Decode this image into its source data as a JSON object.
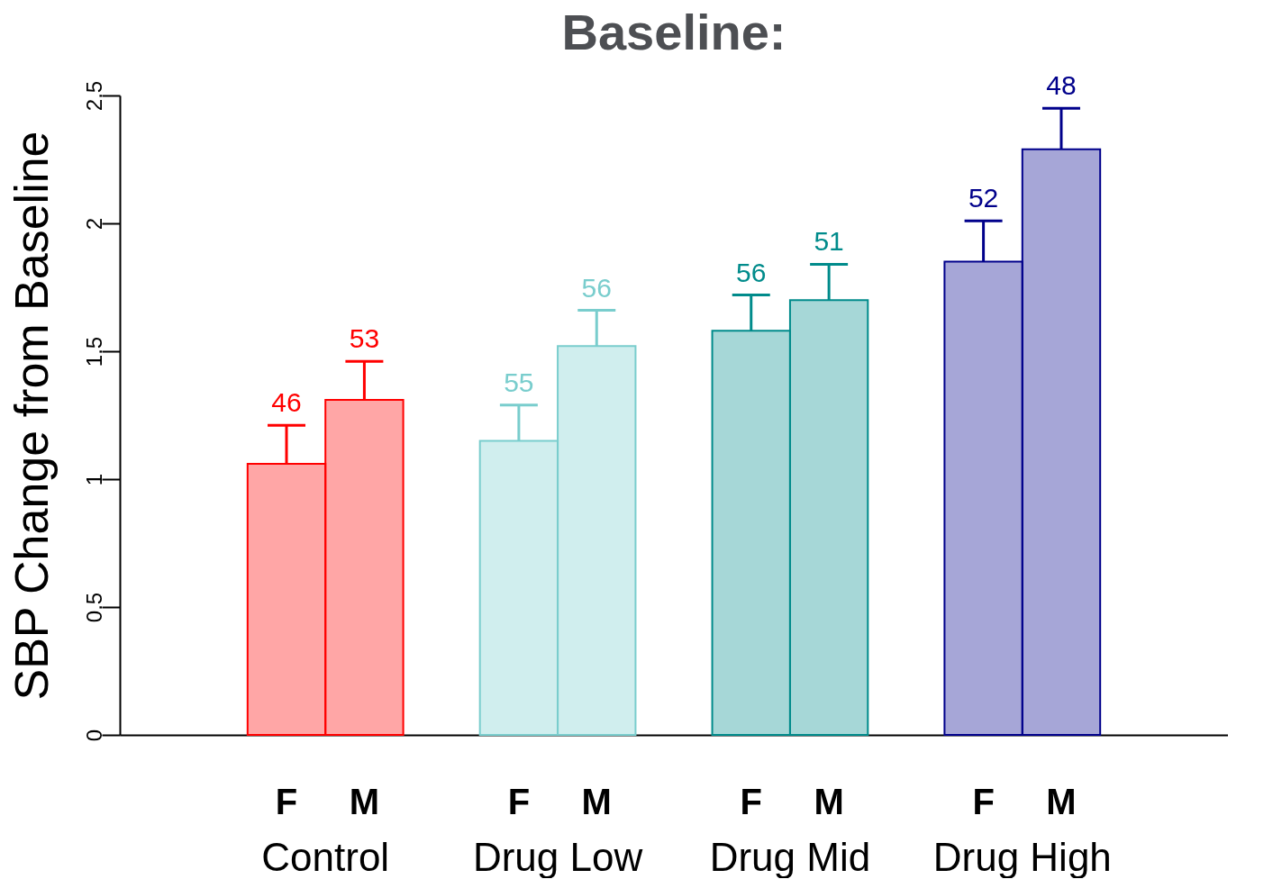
{
  "chart_data": {
    "type": "bar",
    "title": "Baseline:",
    "ylabel": "SBP Change from Baseline",
    "categories": [
      "Control",
      "Drug Low",
      "Drug Mid",
      "Drug High"
    ],
    "series": [
      {
        "name": "F",
        "colors": [
          "#ff0000",
          "#79cdcd",
          "#008b8b",
          "#00008b"
        ],
        "values": [
          1.06,
          1.15,
          1.58,
          1.85
        ],
        "errors": [
          [
            1.06,
            1.21
          ],
          [
            1.15,
            1.29
          ],
          [
            1.58,
            1.72
          ],
          [
            1.85,
            2.01
          ]
        ]
      },
      {
        "name": "M",
        "colors": [
          "#ff0000",
          "#79cdcd",
          "#008b8b",
          "#00008b"
        ],
        "values": [
          1.31,
          1.52,
          1.7,
          2.29
        ],
        "errors": [
          [
            1.31,
            1.46
          ],
          [
            1.52,
            1.66
          ],
          [
            1.7,
            1.84
          ],
          [
            2.29,
            2.45
          ]
        ]
      }
    ],
    "annotations": [
      "46",
      "53",
      "55",
      "56",
      "56",
      "51",
      "52",
      "48"
    ],
    "ylim": [
      0,
      2.5
    ],
    "yticks": [
      0,
      0.5,
      1,
      1.5,
      2,
      2.5
    ],
    "grid": false
  }
}
